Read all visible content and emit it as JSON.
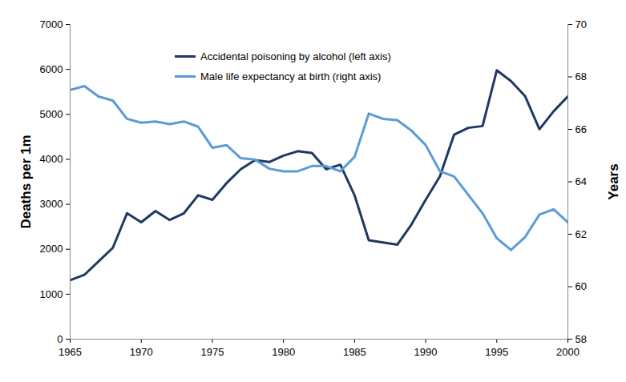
{
  "chart_data": {
    "type": "line",
    "x": [
      1965,
      1966,
      1967,
      1968,
      1969,
      1970,
      1971,
      1972,
      1973,
      1974,
      1975,
      1976,
      1977,
      1978,
      1979,
      1980,
      1981,
      1982,
      1983,
      1984,
      1985,
      1986,
      1987,
      1988,
      1989,
      1990,
      1991,
      1992,
      1993,
      1994,
      1995,
      1996,
      1997,
      1998,
      1999,
      2000
    ],
    "series": [
      {
        "name": "Accidental poisoning by alcohol (left axis)",
        "color": "#1f3864",
        "values": [
          1310,
          1430,
          1730,
          2030,
          2800,
          2600,
          2850,
          2650,
          2800,
          3200,
          3100,
          3470,
          3780,
          3980,
          3940,
          4080,
          4180,
          4140,
          3780,
          3880,
          3200,
          2200,
          2150,
          2100,
          2550,
          3100,
          3620,
          4550,
          4700,
          4740,
          5980,
          5740,
          5400,
          4670,
          5070,
          5400
        ]
      },
      {
        "name": "Male life expectancy at birth (right axis)",
        "color": "#5b9bd5",
        "axis": "y2",
        "values": [
          67.5,
          67.65,
          67.25,
          67.1,
          66.4,
          66.25,
          66.3,
          66.2,
          66.3,
          66.1,
          65.3,
          65.4,
          64.9,
          64.85,
          64.5,
          64.4,
          64.4,
          64.6,
          64.6,
          64.4,
          64.95,
          66.6,
          66.4,
          66.35,
          65.95,
          65.4,
          64.4,
          64.2,
          63.5,
          62.8,
          61.85,
          61.4,
          61.9,
          62.75,
          62.95,
          62.45
        ]
      }
    ],
    "xlim": [
      1965,
      2000
    ],
    "xticks": [
      1965,
      1970,
      1975,
      1980,
      1985,
      1990,
      1995,
      2000
    ],
    "ylim": [
      0,
      7000
    ],
    "yticks": [
      0,
      1000,
      2000,
      3000,
      4000,
      5000,
      6000,
      7000
    ],
    "y_label": "Deaths per 1m",
    "y2lim": [
      58,
      70
    ],
    "y2ticks": [
      58,
      60,
      62,
      64,
      66,
      68,
      70
    ],
    "y2_label": "Years",
    "legend": "top",
    "grid": false
  }
}
